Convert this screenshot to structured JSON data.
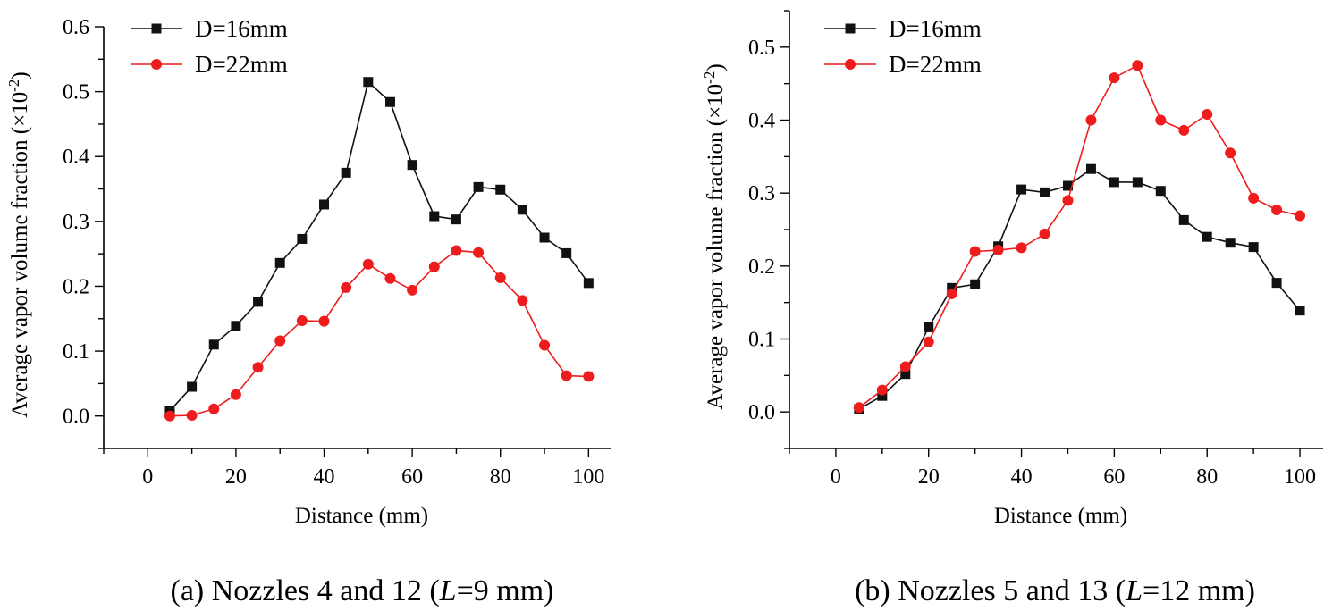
{
  "colors": {
    "series_black": "#111111",
    "series_red": "#ee1c1c"
  },
  "chart_data": [
    {
      "type": "line",
      "caption": {
        "prefix": "(a) Nozzles 4 and 12 (",
        "italic": "L",
        "suffix": "=9 mm)"
      },
      "xlabel": "Distance (mm)",
      "ylabel": "Average vapor volume fraction (×10",
      "ylabel_sup": "-2",
      "ylabel_end": ")",
      "xlim": [
        -10,
        105
      ],
      "ylim": [
        -0.05,
        0.6
      ],
      "xticks": [
        0,
        20,
        40,
        60,
        80,
        100
      ],
      "yticks": [
        0.0,
        0.1,
        0.2,
        0.3,
        0.4,
        0.5,
        0.6
      ],
      "ytick_labels": [
        "0.0",
        "0.1",
        "0.2",
        "0.3",
        "0.4",
        "0.5",
        "0.6"
      ],
      "legend_position": "top-left",
      "x": [
        5,
        10,
        15,
        20,
        25,
        30,
        35,
        40,
        45,
        50,
        55,
        60,
        65,
        70,
        75,
        80,
        85,
        90,
        95,
        100
      ],
      "series": [
        {
          "name": "D=16mm",
          "color": "#111111",
          "marker": "square",
          "values": [
            0.008,
            0.045,
            0.11,
            0.139,
            0.176,
            0.236,
            0.273,
            0.326,
            0.375,
            0.515,
            0.484,
            0.387,
            0.308,
            0.303,
            0.353,
            0.349,
            0.318,
            0.275,
            0.251,
            0.205
          ]
        },
        {
          "name": "D=22mm",
          "color": "#ee1c1c",
          "marker": "circle",
          "values": [
            0.0,
            0.001,
            0.011,
            0.033,
            0.075,
            0.116,
            0.147,
            0.146,
            0.198,
            0.234,
            0.212,
            0.194,
            0.23,
            0.255,
            0.252,
            0.213,
            0.178,
            0.109,
            0.062,
            0.061
          ]
        }
      ]
    },
    {
      "type": "line",
      "caption": {
        "prefix": "(b) Nozzles 5 and 13 (",
        "italic": "L",
        "suffix": "=12 mm)"
      },
      "xlabel": "Distance (mm)",
      "ylabel": "Average vapor volume fraction (×10",
      "ylabel_sup": "-2",
      "ylabel_end": ")",
      "xlim": [
        -10,
        105
      ],
      "ylim": [
        -0.05,
        0.55
      ],
      "xticks": [
        0,
        20,
        40,
        60,
        80,
        100
      ],
      "yticks": [
        0.0,
        0.1,
        0.2,
        0.3,
        0.4,
        0.5
      ],
      "ytick_labels": [
        "0.0",
        "0.1",
        "0.2",
        "0.3",
        "0.4",
        "0.5"
      ],
      "legend_position": "top-left",
      "x": [
        5,
        10,
        15,
        20,
        25,
        30,
        35,
        40,
        45,
        50,
        55,
        60,
        65,
        70,
        75,
        80,
        85,
        90,
        95,
        100
      ],
      "series": [
        {
          "name": "D=16mm",
          "color": "#111111",
          "marker": "square",
          "values": [
            0.004,
            0.022,
            0.052,
            0.116,
            0.17,
            0.175,
            0.227,
            0.305,
            0.301,
            0.31,
            0.333,
            0.315,
            0.315,
            0.303,
            0.263,
            0.24,
            0.232,
            0.226,
            0.177,
            0.139
          ]
        },
        {
          "name": "D=22mm",
          "color": "#ee1c1c",
          "marker": "circle",
          "values": [
            0.006,
            0.03,
            0.062,
            0.096,
            0.162,
            0.22,
            0.222,
            0.225,
            0.244,
            0.29,
            0.4,
            0.458,
            0.475,
            0.4,
            0.386,
            0.408,
            0.355,
            0.293,
            0.277,
            0.269
          ]
        }
      ]
    }
  ]
}
